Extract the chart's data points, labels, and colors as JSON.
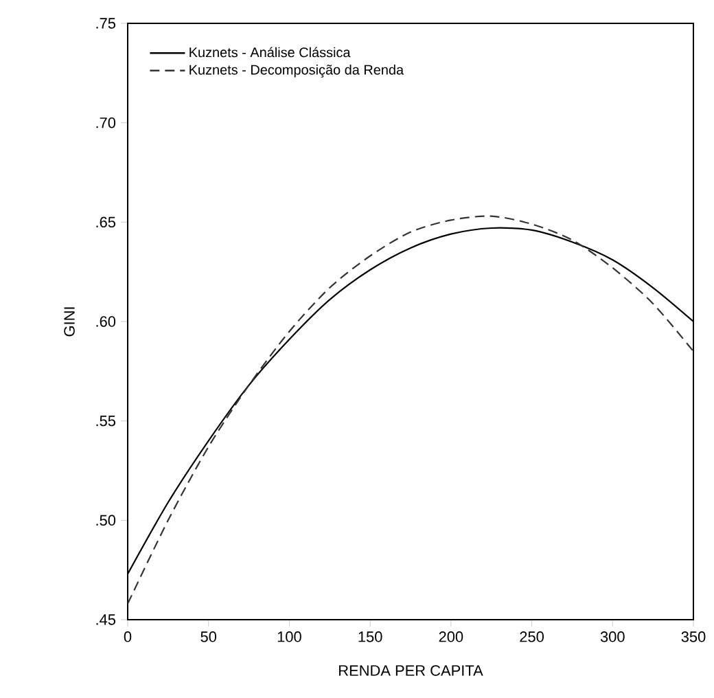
{
  "chart_data": {
    "type": "line",
    "xlabel": "RENDA PER CAPITA",
    "ylabel": "GINI",
    "x": [
      0,
      25,
      50,
      75,
      100,
      125,
      150,
      175,
      200,
      225,
      250,
      275,
      300,
      325,
      350
    ],
    "series": [
      {
        "name": "Kuznets - Análise Clássica",
        "color": "#000000",
        "line_style": "solid",
        "values": [
          0.473,
          0.509,
          0.54,
          0.568,
          0.591,
          0.611,
          0.626,
          0.637,
          0.644,
          0.647,
          0.646,
          0.64,
          0.631,
          0.617,
          0.6
        ]
      },
      {
        "name": "Kuznets - Decomposição da Renda",
        "color": "#333333",
        "line_style": "dashed",
        "values": [
          0.458,
          0.5,
          0.537,
          0.568,
          0.595,
          0.617,
          0.633,
          0.645,
          0.651,
          0.653,
          0.649,
          0.641,
          0.627,
          0.609,
          0.585
        ]
      }
    ],
    "xlim": [
      0,
      350
    ],
    "xticks": [
      0,
      50,
      100,
      150,
      200,
      250,
      300,
      350
    ],
    "ylim": [
      0.45,
      0.75
    ],
    "yticks": [
      {
        "value": 0.45,
        "label": ".45"
      },
      {
        "value": 0.5,
        "label": ".50"
      },
      {
        "value": 0.55,
        "label": ".55"
      },
      {
        "value": 0.6,
        "label": ".60"
      },
      {
        "value": 0.65,
        "label": ".65"
      },
      {
        "value": 0.7,
        "label": ".70"
      },
      {
        "value": 0.75,
        "label": ".75"
      }
    ],
    "legend": "top left",
    "grid": false,
    "marker": "none"
  }
}
